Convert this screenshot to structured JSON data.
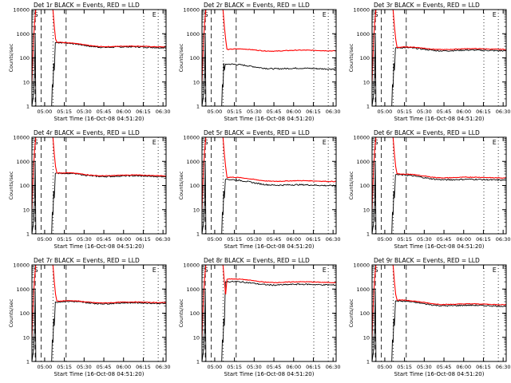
{
  "figure": {
    "x_axis_title": "Start Time (16-Oct-08 04:51:20)",
    "y_axis_title": "Counts/sec",
    "x_tick_labels": [
      "05:00",
      "05:15",
      "05:30",
      "05:45",
      "06:00",
      "06:15",
      "06:30"
    ],
    "y_tick_labels": [
      "1",
      "10",
      "100",
      "1000",
      "10000"
    ],
    "colors": {
      "events": "#000000",
      "lld": "#ff0000",
      "axes": "#000000",
      "background": "#ffffff"
    },
    "markers": {
      "left_label": "S",
      "right_label": "E"
    }
  },
  "chart_data": [
    {
      "type": "line",
      "title": "Det 1r  BLACK = Events, RED = LLD",
      "xlabel": "Start Time (16-Oct-08 04:51:20)",
      "ylabel": "Counts/sec",
      "xlim_minutes_after_start": [
        -1,
        101
      ],
      "ylim": [
        1,
        10000
      ],
      "yscale": "log",
      "x_ticks": [
        "05:00",
        "05:15",
        "05:30",
        "05:45",
        "06:00",
        "06:15",
        "06:30"
      ],
      "series": [
        {
          "name": "Events",
          "color": "#000000",
          "level": 270,
          "step": 430
        },
        {
          "name": "LLD",
          "color": "#ff0000",
          "level": 290,
          "step": 440
        }
      ]
    },
    {
      "type": "line",
      "title": "Det 2r  BLACK = Events, RED = LLD",
      "xlabel": "Start Time (16-Oct-08 04:51:20)",
      "ylabel": "Counts/sec",
      "xlim_minutes_after_start": [
        -1,
        101
      ],
      "ylim": [
        1,
        10000
      ],
      "yscale": "log",
      "x_ticks": [
        "05:00",
        "05:15",
        "05:30",
        "05:45",
        "06:00",
        "06:15",
        "06:30"
      ],
      "series": [
        {
          "name": "Events",
          "color": "#000000",
          "level": 35,
          "step": 55
        },
        {
          "name": "LLD",
          "color": "#ff0000",
          "level": 200,
          "step": 220
        }
      ]
    },
    {
      "type": "line",
      "title": "Det 3r  BLACK = Events, RED = LLD",
      "xlabel": "Start Time (16-Oct-08 04:51:20)",
      "ylabel": "Counts/sec",
      "xlim_minutes_after_start": [
        -1,
        101
      ],
      "ylim": [
        1,
        10000
      ],
      "yscale": "log",
      "x_ticks": [
        "05:00",
        "05:15",
        "05:30",
        "05:45",
        "06:00",
        "06:15",
        "06:30"
      ],
      "series": [
        {
          "name": "Events",
          "color": "#000000",
          "level": 200,
          "step": 260
        },
        {
          "name": "LLD",
          "color": "#ff0000",
          "level": 230,
          "step": 270
        }
      ]
    },
    {
      "type": "line",
      "title": "Det 4r  BLACK = Events, RED = LLD",
      "xlabel": "Start Time (16-Oct-08 04:51:20)",
      "ylabel": "Counts/sec",
      "xlim_minutes_after_start": [
        -1,
        101
      ],
      "ylim": [
        1,
        10000
      ],
      "yscale": "log",
      "x_ticks": [
        "05:00",
        "05:15",
        "05:30",
        "05:45",
        "06:00",
        "06:15",
        "06:30"
      ],
      "series": [
        {
          "name": "Events",
          "color": "#000000",
          "level": 240,
          "step": 320
        },
        {
          "name": "LLD",
          "color": "#ff0000",
          "level": 260,
          "step": 330
        }
      ]
    },
    {
      "type": "line",
      "title": "Det 5r  BLACK = Events, RED = LLD",
      "xlabel": "Start Time (16-Oct-08 04:51:20)",
      "ylabel": "Counts/sec",
      "xlim_minutes_after_start": [
        -1,
        101
      ],
      "ylim": [
        1,
        10000
      ],
      "yscale": "log",
      "x_ticks": [
        "05:00",
        "05:15",
        "05:30",
        "05:45",
        "06:00",
        "06:15",
        "06:30"
      ],
      "series": [
        {
          "name": "Events",
          "color": "#000000",
          "level": 100,
          "step": 180
        },
        {
          "name": "LLD",
          "color": "#ff0000",
          "level": 150,
          "step": 220
        }
      ]
    },
    {
      "type": "line",
      "title": "Det 6r  BLACK = Events, RED = LLD",
      "xlabel": "Start Time (16-Oct-08 04:51:20)",
      "ylabel": "Counts/sec",
      "xlim_minutes_after_start": [
        -1,
        101
      ],
      "ylim": [
        1,
        10000
      ],
      "yscale": "log",
      "x_ticks": [
        "05:00",
        "05:15",
        "05:30",
        "05:45",
        "06:00",
        "06:15",
        "06:30"
      ],
      "series": [
        {
          "name": "Events",
          "color": "#000000",
          "level": 170,
          "step": 280
        },
        {
          "name": "LLD",
          "color": "#ff0000",
          "level": 210,
          "step": 300
        }
      ]
    },
    {
      "type": "line",
      "title": "Det 7r  BLACK = Events, RED = LLD",
      "xlabel": "Start Time (16-Oct-08 04:51:20)",
      "ylabel": "Counts/sec",
      "xlim_minutes_after_start": [
        -1,
        101
      ],
      "ylim": [
        1,
        10000
      ],
      "yscale": "log",
      "x_ticks": [
        "05:00",
        "05:15",
        "05:30",
        "05:45",
        "06:00",
        "06:15",
        "06:30"
      ],
      "series": [
        {
          "name": "Events",
          "color": "#000000",
          "level": 260,
          "step": 290
        },
        {
          "name": "LLD",
          "color": "#ff0000",
          "level": 280,
          "step": 310
        }
      ]
    },
    {
      "type": "line",
      "title": "Det 8r  BLACK = Events, RED = LLD",
      "xlabel": "Start Time (16-Oct-08 04:51:20)",
      "ylabel": "Counts/sec",
      "xlim_minutes_after_start": [
        -1,
        101
      ],
      "ylim": [
        1,
        10000
      ],
      "yscale": "log",
      "x_ticks": [
        "05:00",
        "05:15",
        "05:30",
        "05:45",
        "06:00",
        "06:15",
        "06:30"
      ],
      "series": [
        {
          "name": "Events",
          "color": "#000000",
          "level": 1500,
          "step": 2000
        },
        {
          "name": "LLD",
          "color": "#ff0000",
          "level": 1900,
          "step": 2600
        }
      ]
    },
    {
      "type": "line",
      "title": "Det 9r  BLACK = Events, RED = LLD",
      "xlabel": "Start Time (16-Oct-08 04:51:20)",
      "ylabel": "Counts/sec",
      "xlim_minutes_after_start": [
        -1,
        101
      ],
      "ylim": [
        1,
        10000
      ],
      "yscale": "log",
      "x_ticks": [
        "05:00",
        "05:15",
        "05:30",
        "05:45",
        "06:00",
        "06:15",
        "06:30"
      ],
      "series": [
        {
          "name": "Events",
          "color": "#000000",
          "level": 200,
          "step": 320
        },
        {
          "name": "LLD",
          "color": "#ff0000",
          "level": 230,
          "step": 350
        }
      ]
    }
  ]
}
